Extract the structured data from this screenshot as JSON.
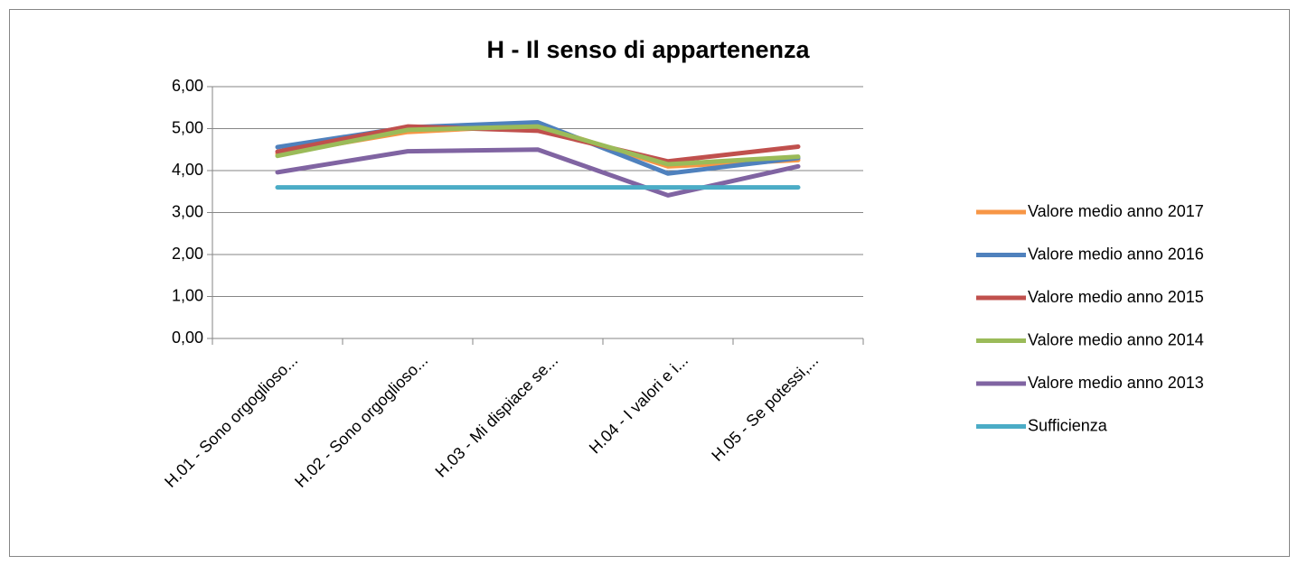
{
  "chart_data": {
    "type": "line",
    "title": "H - Il senso di appartenenza",
    "categories": [
      "H.01 - Sono orgoglioso...",
      "H.02 - Sono orgoglioso...",
      "H.03 - Mi dispiace se...",
      "H.04 - I valori e i...",
      "H.05 - Se potessi,..."
    ],
    "series": [
      {
        "name": "Valore medio anno 2017",
        "color": "#f79646",
        "values": [
          4.4,
          4.92,
          5.08,
          4.1,
          4.25
        ]
      },
      {
        "name": "Valore medio anno 2016",
        "color": "#4f81bd",
        "values": [
          4.56,
          5.03,
          5.15,
          3.93,
          4.3
        ]
      },
      {
        "name": "Valore medio anno 2015",
        "color": "#c0504d",
        "values": [
          4.45,
          5.05,
          4.95,
          4.22,
          4.57
        ]
      },
      {
        "name": "Valore medio anno 2014",
        "color": "#9bbb59",
        "values": [
          4.35,
          4.97,
          5.05,
          4.15,
          4.33
        ]
      },
      {
        "name": "Valore medio anno 2013",
        "color": "#8064a2",
        "values": [
          3.96,
          4.46,
          4.5,
          3.41,
          4.1
        ]
      },
      {
        "name": "Sufficienza",
        "color": "#4bacc6",
        "values": [
          3.6,
          3.6,
          3.6,
          3.6,
          3.6
        ]
      }
    ],
    "ylim": [
      0,
      6
    ],
    "yticks": [
      {
        "value": 0,
        "label": "0,00"
      },
      {
        "value": 1,
        "label": "1,00"
      },
      {
        "value": 2,
        "label": "2,00"
      },
      {
        "value": 3,
        "label": "3,00"
      },
      {
        "value": 4,
        "label": "4,00"
      },
      {
        "value": 5,
        "label": "5,00"
      },
      {
        "value": 6,
        "label": "6,00"
      }
    ],
    "grid": true,
    "legend": "right"
  }
}
